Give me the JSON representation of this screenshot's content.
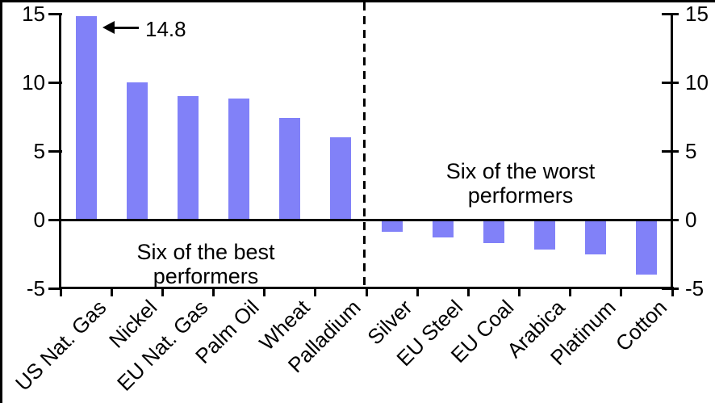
{
  "chart_data": {
    "type": "bar",
    "title": "",
    "xlabel": "",
    "ylabel": "",
    "categories": [
      "US Nat. Gas",
      "Nickel",
      "EU Nat. Gas",
      "Palm Oil",
      "Wheat",
      "Palladium",
      "Silver",
      "EU Steel",
      "EU Coal",
      "Arabica",
      "Platinum",
      "Cotton"
    ],
    "values": [
      14.8,
      10.0,
      9.0,
      8.8,
      7.4,
      6.0,
      -0.9,
      -1.3,
      -1.7,
      -2.2,
      -2.5,
      -4.0
    ],
    "ylim": [
      -5,
      15
    ],
    "yticks": [
      "15",
      "10",
      "5",
      "0",
      "-5"
    ],
    "ytick_values": [
      15,
      10,
      5,
      0,
      -5
    ],
    "grid": false,
    "legend": "none",
    "bar_color": "#8181f8",
    "axis_color": "#000000",
    "separator_after_index": 5,
    "annotations": [
      {
        "id": "value-callout",
        "text": "14.8",
        "target": "US Nat. Gas"
      },
      {
        "id": "best-note",
        "text": "Six of the best performers"
      },
      {
        "id": "worst-note",
        "text": "Six of the worst performers"
      }
    ]
  }
}
